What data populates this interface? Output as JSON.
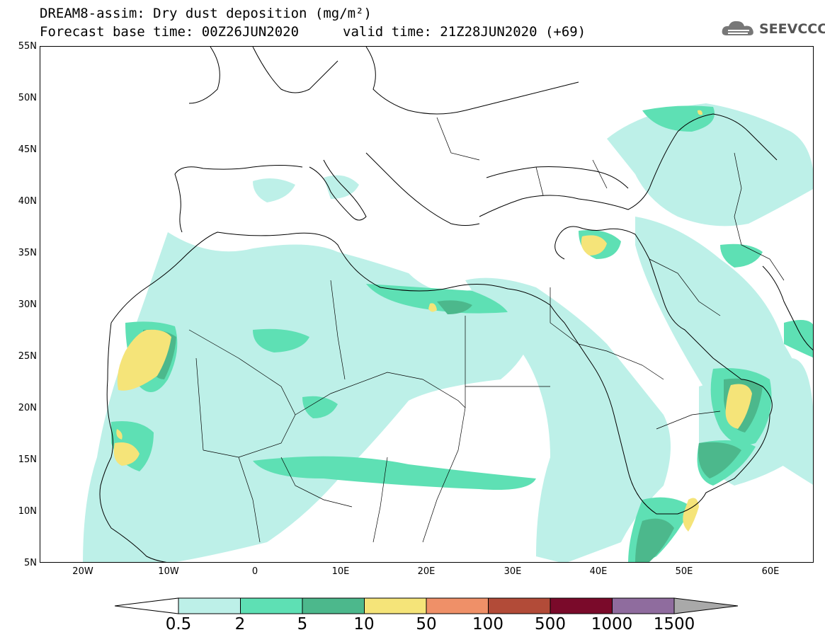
{
  "title": {
    "line1": "DREAM8-assim: Dry dust deposition (mg/m²)",
    "line2": "Forecast base time: 00Z26JUN2020",
    "valid": "valid time: 21Z28JUN2020 (+69)"
  },
  "logo": {
    "text": "SEEVCCC",
    "icon": "cloud-icon"
  },
  "map": {
    "lon_range": [
      -25,
      65
    ],
    "lat_range": [
      5,
      55
    ],
    "lat_labels": [
      "55N",
      "50N",
      "45N",
      "40N",
      "35N",
      "30N",
      "25N",
      "20N",
      "15N",
      "10N",
      "5N"
    ],
    "lon_labels": [
      "20W",
      "10W",
      "0",
      "10E",
      "20E",
      "30E",
      "40E",
      "50E",
      "60E"
    ],
    "lat_values": [
      55,
      50,
      45,
      40,
      35,
      30,
      25,
      20,
      15,
      10,
      5
    ],
    "lon_values": [
      -20,
      -10,
      0,
      10,
      20,
      30,
      40,
      50,
      60
    ]
  },
  "colorbar": {
    "labels": [
      "0.5",
      "2",
      "5",
      "10",
      "50",
      "100",
      "500",
      "1000",
      "1500"
    ],
    "colors": [
      "#bdf0e8",
      "#5ee0b4",
      "#4cb88c",
      "#f5e479",
      "#ef9068",
      "#b24b38",
      "#7a0a2a",
      "#8f6c9e"
    ],
    "under_color": "#ffffff",
    "over_color": "#a9a9a9"
  }
}
